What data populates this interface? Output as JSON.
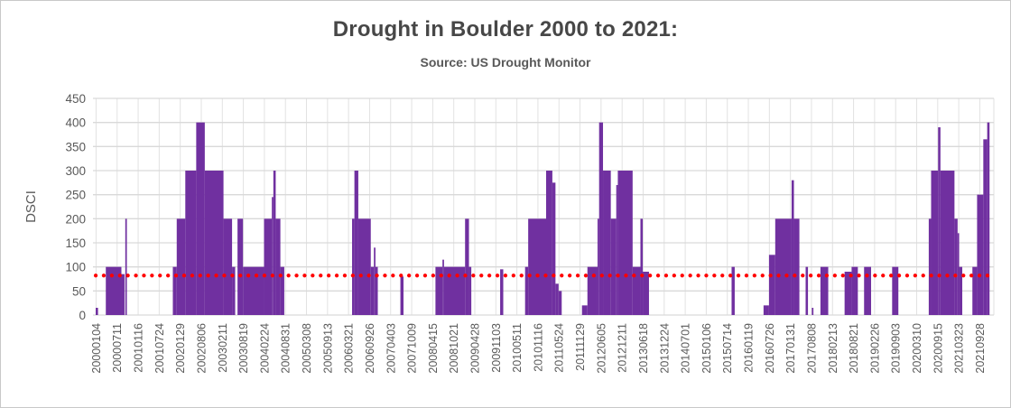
{
  "title": "Drought in Boulder 2000 to 2021:",
  "subtitle": "Source: US Drought Monitor",
  "chart_data": {
    "type": "bar",
    "title": "Drought in Boulder 2000 to 2021:",
    "subtitle": "Source: US Drought Monitor",
    "xlabel": "",
    "ylabel": "DSCI",
    "ylim": [
      0,
      450
    ],
    "ytick_step": 50,
    "ytick_labels": [
      "0",
      "50",
      "100",
      "150",
      "200",
      "250",
      "300",
      "350",
      "400",
      "450"
    ],
    "grid": "horizontal-and-faint-vertical",
    "legend": "none",
    "bar_color": "#7030A0",
    "grid_color": "#D9D9D9",
    "vgrid_color": "#E2E2E2",
    "text_color": "#595959",
    "x_unit": "week",
    "weeks_per_label": 27,
    "total_weeks": 1156,
    "x_tick_labels": [
      "20000104",
      "20000711",
      "20010116",
      "20010724",
      "20020129",
      "20020806",
      "20030211",
      "20030819",
      "20040224",
      "20040831",
      "20050308",
      "20050913",
      "20060321",
      "20060926",
      "20070403",
      "20071009",
      "20080415",
      "20081021",
      "20090428",
      "20091103",
      "20100511",
      "20101116",
      "20110524",
      "20111129",
      "20120605",
      "20121211",
      "20130618",
      "20131224",
      "20140701",
      "20150106",
      "20150714",
      "20160119",
      "20160726",
      "20170131",
      "20170808",
      "20180213",
      "20180821",
      "20190226",
      "20190903",
      "20200310",
      "20200915",
      "20210323",
      "20210928"
    ],
    "trendline": {
      "value": 82,
      "color": "#FF0000",
      "style": "dotted"
    },
    "series_name": "DSCI",
    "segments_format": [
      "week_start",
      "week_end",
      "dsci_value"
    ],
    "segments": [
      [
        0,
        3,
        15
      ],
      [
        13,
        33,
        100
      ],
      [
        33,
        37,
        85
      ],
      [
        38,
        40,
        200
      ],
      [
        99,
        104,
        100
      ],
      [
        104,
        115,
        200
      ],
      [
        115,
        129,
        300
      ],
      [
        129,
        140,
        400
      ],
      [
        140,
        164,
        300
      ],
      [
        164,
        175,
        200
      ],
      [
        175,
        179,
        100
      ],
      [
        182,
        189,
        200
      ],
      [
        189,
        216,
        100
      ],
      [
        216,
        226,
        200
      ],
      [
        226,
        228,
        245
      ],
      [
        228,
        231,
        300
      ],
      [
        231,
        237,
        200
      ],
      [
        237,
        242,
        100
      ],
      [
        329,
        332,
        200
      ],
      [
        332,
        337,
        300
      ],
      [
        337,
        353,
        200
      ],
      [
        353,
        357,
        100
      ],
      [
        357,
        359,
        140
      ],
      [
        359,
        362,
        100
      ],
      [
        391,
        395,
        80
      ],
      [
        436,
        445,
        100
      ],
      [
        445,
        447,
        115
      ],
      [
        447,
        474,
        100
      ],
      [
        474,
        479,
        200
      ],
      [
        479,
        482,
        100
      ],
      [
        519,
        523,
        95
      ],
      [
        551,
        555,
        100
      ],
      [
        555,
        578,
        200
      ],
      [
        578,
        586,
        300
      ],
      [
        586,
        590,
        275
      ],
      [
        590,
        594,
        65
      ],
      [
        594,
        598,
        50
      ],
      [
        624,
        631,
        20
      ],
      [
        631,
        644,
        100
      ],
      [
        644,
        646,
        200
      ],
      [
        646,
        651,
        400
      ],
      [
        651,
        661,
        300
      ],
      [
        661,
        668,
        200
      ],
      [
        668,
        670,
        270
      ],
      [
        670,
        689,
        300
      ],
      [
        689,
        699,
        100
      ],
      [
        699,
        702,
        200
      ],
      [
        702,
        710,
        90
      ],
      [
        816,
        820,
        100
      ],
      [
        857,
        864,
        20
      ],
      [
        864,
        872,
        125
      ],
      [
        872,
        893,
        200
      ],
      [
        893,
        896,
        280
      ],
      [
        896,
        903,
        200
      ],
      [
        911,
        914,
        100
      ],
      [
        919,
        921,
        15
      ],
      [
        930,
        940,
        100
      ],
      [
        961,
        970,
        90
      ],
      [
        970,
        978,
        100
      ],
      [
        986,
        995,
        100
      ],
      [
        1022,
        1030,
        100
      ],
      [
        1069,
        1072,
        200
      ],
      [
        1072,
        1081,
        300
      ],
      [
        1081,
        1084,
        390
      ],
      [
        1084,
        1102,
        300
      ],
      [
        1102,
        1106,
        200
      ],
      [
        1106,
        1108,
        170
      ],
      [
        1108,
        1112,
        100
      ],
      [
        1125,
        1131,
        100
      ],
      [
        1131,
        1139,
        250
      ],
      [
        1139,
        1144,
        365
      ],
      [
        1144,
        1147,
        400
      ]
    ]
  }
}
